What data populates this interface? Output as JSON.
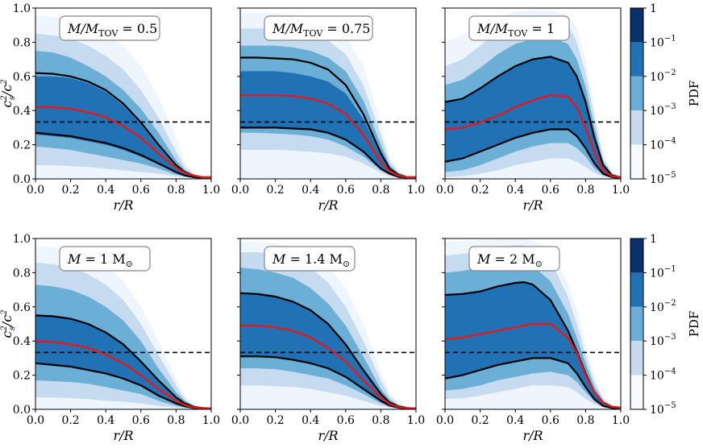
{
  "figure": {
    "colorbar": {
      "label": "PDF",
      "ticks": [
        {
          "base": "1",
          "exp": ""
        },
        {
          "base": "10",
          "exp": "−1"
        },
        {
          "base": "10",
          "exp": "−2"
        },
        {
          "base": "10",
          "exp": "−3"
        },
        {
          "base": "10",
          "exp": "−4"
        },
        {
          "base": "10",
          "exp": "−5"
        }
      ],
      "colors": [
        "#08306b",
        "#2171b5",
        "#6baed6",
        "#c6dbef",
        "#f7fbff"
      ]
    },
    "colors": {
      "dark_band": "#2171b5",
      "mid_band": "#6baed6",
      "light_band": "#c6dbef",
      "faint_band": "#eef5fc",
      "bound_line": "#000000",
      "median_line": "#e31a1c",
      "reference_line": "#000000"
    }
  },
  "chart_data": [
    {
      "type": "area",
      "panel": "top-left",
      "annotation": {
        "main": "M/M",
        "sub": "TOV",
        "value": " = 0.5"
      },
      "xlabel": "r/R",
      "ylabel": "c",
      "ylabel_parts": {
        "main": "c",
        "sup": "2",
        "sub": "s",
        "slash": "/c",
        "sup2": "2"
      },
      "xlim": [
        0,
        1
      ],
      "ylim": [
        0,
        1
      ],
      "xticks": [
        "0.0",
        "0.2",
        "0.4",
        "0.6",
        "0.8",
        "1.0"
      ],
      "yticks": [
        "0.0",
        "0.2",
        "0.4",
        "0.6",
        "0.8",
        "1.0"
      ],
      "reference_y": 0.333,
      "x": [
        0,
        0.1,
        0.2,
        0.3,
        0.4,
        0.5,
        0.6,
        0.7,
        0.8,
        0.85,
        0.9,
        0.95,
        1.0
      ],
      "upper": [
        0.62,
        0.615,
        0.6,
        0.57,
        0.52,
        0.44,
        0.33,
        0.2,
        0.08,
        0.04,
        0.02,
        0.01,
        0.01
      ],
      "median": [
        0.42,
        0.42,
        0.41,
        0.39,
        0.36,
        0.31,
        0.24,
        0.15,
        0.065,
        0.035,
        0.02,
        0.01,
        0.01
      ],
      "lower": [
        0.27,
        0.26,
        0.25,
        0.23,
        0.21,
        0.18,
        0.14,
        0.09,
        0.04,
        0.02,
        0.01,
        0.005,
        0.005
      ],
      "bands": {
        "dark_hi": [
          0.6,
          0.6,
          0.59,
          0.56,
          0.51,
          0.43,
          0.32,
          0.19,
          0.07,
          0.035,
          0.02,
          0.01,
          0.01
        ],
        "dark_lo": [
          0.26,
          0.25,
          0.24,
          0.22,
          0.2,
          0.17,
          0.13,
          0.085,
          0.035,
          0.02,
          0.01,
          0.005,
          0.005
        ],
        "mid_hi": [
          0.75,
          0.74,
          0.71,
          0.66,
          0.6,
          0.52,
          0.41,
          0.27,
          0.11,
          0.05,
          0.025,
          0.01,
          0.01
        ],
        "mid_lo": [
          0.19,
          0.18,
          0.17,
          0.15,
          0.13,
          0.11,
          0.09,
          0.06,
          0.025,
          0.015,
          0.008,
          0.004,
          0.004
        ],
        "light_hi": [
          0.85,
          0.84,
          0.82,
          0.78,
          0.72,
          0.64,
          0.52,
          0.36,
          0.16,
          0.07,
          0.03,
          0.012,
          0.01
        ],
        "light_lo": [
          0.08,
          0.08,
          0.075,
          0.07,
          0.06,
          0.05,
          0.04,
          0.03,
          0.015,
          0.008,
          0.005,
          0.003,
          0.003
        ],
        "faint_hi": [
          0.96,
          0.95,
          0.93,
          0.9,
          0.85,
          0.78,
          0.66,
          0.48,
          0.24,
          0.1,
          0.04,
          0.015,
          0.01
        ]
      }
    },
    {
      "type": "area",
      "panel": "top-middle",
      "annotation": {
        "main": "M/M",
        "sub": "TOV",
        "value": " = 0.75"
      },
      "xlabel": "r/R",
      "xlim": [
        0,
        1
      ],
      "ylim": [
        0,
        1
      ],
      "xticks": [
        "0.0",
        "0.2",
        "0.4",
        "0.6",
        "0.8",
        "1.0"
      ],
      "reference_y": 0.333,
      "x": [
        0,
        0.1,
        0.2,
        0.3,
        0.4,
        0.5,
        0.6,
        0.7,
        0.8,
        0.85,
        0.9,
        0.95,
        1.0
      ],
      "upper": [
        0.71,
        0.71,
        0.705,
        0.7,
        0.68,
        0.64,
        0.55,
        0.38,
        0.15,
        0.06,
        0.025,
        0.01,
        0.01
      ],
      "median": [
        0.49,
        0.49,
        0.49,
        0.485,
        0.47,
        0.44,
        0.38,
        0.26,
        0.1,
        0.045,
        0.02,
        0.01,
        0.01
      ],
      "lower": [
        0.3,
        0.3,
        0.3,
        0.295,
        0.29,
        0.27,
        0.23,
        0.16,
        0.06,
        0.03,
        0.012,
        0.006,
        0.005
      ],
      "bands": {
        "dark_hi": [
          0.63,
          0.63,
          0.63,
          0.62,
          0.6,
          0.57,
          0.5,
          0.35,
          0.14,
          0.055,
          0.023,
          0.01,
          0.01
        ],
        "dark_lo": [
          0.3,
          0.3,
          0.3,
          0.295,
          0.29,
          0.27,
          0.23,
          0.16,
          0.06,
          0.03,
          0.012,
          0.006,
          0.005
        ],
        "mid_hi": [
          0.78,
          0.78,
          0.78,
          0.77,
          0.75,
          0.71,
          0.63,
          0.46,
          0.2,
          0.08,
          0.03,
          0.012,
          0.01
        ],
        "mid_lo": [
          0.27,
          0.27,
          0.265,
          0.26,
          0.25,
          0.23,
          0.19,
          0.13,
          0.05,
          0.025,
          0.01,
          0.005,
          0.004
        ],
        "light_hi": [
          0.88,
          0.88,
          0.88,
          0.87,
          0.85,
          0.81,
          0.73,
          0.55,
          0.26,
          0.1,
          0.04,
          0.015,
          0.01
        ],
        "light_lo": [
          0.17,
          0.17,
          0.17,
          0.165,
          0.16,
          0.15,
          0.13,
          0.09,
          0.035,
          0.015,
          0.007,
          0.004,
          0.003
        ],
        "faint_hi": [
          0.97,
          0.97,
          0.97,
          0.96,
          0.95,
          0.92,
          0.84,
          0.66,
          0.33,
          0.13,
          0.05,
          0.02,
          0.01
        ]
      }
    },
    {
      "type": "area",
      "panel": "top-right",
      "annotation": {
        "main": "M/M",
        "sub": "TOV",
        "value": " = 1"
      },
      "xlabel": "r/R",
      "xlim": [
        0,
        1
      ],
      "ylim": [
        0,
        1
      ],
      "xticks": [
        "0.0",
        "0.2",
        "0.4",
        "0.6",
        "0.8",
        "1.0"
      ],
      "reference_y": 0.333,
      "x": [
        0,
        0.1,
        0.2,
        0.3,
        0.4,
        0.5,
        0.6,
        0.7,
        0.75,
        0.8,
        0.85,
        0.9,
        0.95,
        1.0
      ],
      "upper": [
        0.45,
        0.47,
        0.53,
        0.6,
        0.66,
        0.7,
        0.715,
        0.68,
        0.6,
        0.45,
        0.24,
        0.08,
        0.02,
        0.01
      ],
      "median": [
        0.29,
        0.3,
        0.33,
        0.37,
        0.42,
        0.46,
        0.49,
        0.48,
        0.42,
        0.3,
        0.16,
        0.05,
        0.015,
        0.01
      ],
      "lower": [
        0.1,
        0.12,
        0.16,
        0.2,
        0.24,
        0.27,
        0.29,
        0.29,
        0.25,
        0.18,
        0.09,
        0.03,
        0.01,
        0.005
      ],
      "bands": {
        "dark_hi": [
          0.45,
          0.47,
          0.53,
          0.6,
          0.66,
          0.7,
          0.72,
          0.68,
          0.6,
          0.45,
          0.24,
          0.08,
          0.02,
          0.01
        ],
        "dark_lo": [
          0.1,
          0.12,
          0.16,
          0.2,
          0.24,
          0.27,
          0.29,
          0.29,
          0.25,
          0.18,
          0.09,
          0.03,
          0.01,
          0.005
        ],
        "mid_hi": [
          0.55,
          0.58,
          0.65,
          0.73,
          0.79,
          0.82,
          0.83,
          0.79,
          0.7,
          0.54,
          0.3,
          0.1,
          0.03,
          0.01
        ],
        "mid_lo": [
          0.04,
          0.05,
          0.08,
          0.12,
          0.16,
          0.19,
          0.21,
          0.21,
          0.18,
          0.13,
          0.06,
          0.02,
          0.008,
          0.004
        ],
        "light_hi": [
          0.66,
          0.7,
          0.78,
          0.86,
          0.92,
          0.95,
          0.95,
          0.9,
          0.8,
          0.62,
          0.36,
          0.12,
          0.035,
          0.01
        ],
        "light_lo": [
          0.01,
          0.015,
          0.03,
          0.05,
          0.08,
          0.1,
          0.12,
          0.12,
          0.1,
          0.07,
          0.035,
          0.012,
          0.005,
          0.003
        ],
        "faint_hi": [
          0.8,
          0.84,
          0.9,
          0.95,
          0.98,
          0.99,
          0.99,
          0.96,
          0.88,
          0.7,
          0.42,
          0.15,
          0.04,
          0.01
        ]
      }
    },
    {
      "type": "area",
      "panel": "bottom-left",
      "annotation": {
        "main": "M",
        "sub": "",
        "value": " = 1 M",
        "sun": "⊙"
      },
      "xlabel": "r/R",
      "ylabel": "c",
      "ylabel_parts": {
        "main": "c",
        "sup": "2",
        "sub": "s",
        "slash": "/c",
        "sup2": "2"
      },
      "xlim": [
        0,
        1
      ],
      "ylim": [
        0,
        1
      ],
      "xticks": [
        "0.0",
        "0.2",
        "0.4",
        "0.6",
        "0.8",
        "1.0"
      ],
      "yticks": [
        "0.0",
        "0.2",
        "0.4",
        "0.6",
        "0.8",
        "1.0"
      ],
      "reference_y": 0.333,
      "x": [
        0,
        0.1,
        0.2,
        0.3,
        0.4,
        0.5,
        0.6,
        0.7,
        0.8,
        0.85,
        0.9,
        0.95,
        1.0
      ],
      "upper": [
        0.55,
        0.545,
        0.53,
        0.5,
        0.45,
        0.38,
        0.28,
        0.17,
        0.07,
        0.035,
        0.015,
        0.008,
        0.005
      ],
      "median": [
        0.4,
        0.395,
        0.38,
        0.36,
        0.32,
        0.27,
        0.2,
        0.12,
        0.05,
        0.025,
        0.012,
        0.006,
        0.005
      ],
      "lower": [
        0.27,
        0.26,
        0.25,
        0.23,
        0.21,
        0.18,
        0.14,
        0.08,
        0.035,
        0.018,
        0.008,
        0.004,
        0.003
      ],
      "bands": {
        "dark_hi": [
          0.55,
          0.545,
          0.53,
          0.5,
          0.45,
          0.38,
          0.28,
          0.17,
          0.07,
          0.035,
          0.015,
          0.008,
          0.005
        ],
        "dark_lo": [
          0.27,
          0.26,
          0.25,
          0.23,
          0.21,
          0.18,
          0.14,
          0.08,
          0.035,
          0.018,
          0.008,
          0.004,
          0.003
        ],
        "mid_hi": [
          0.73,
          0.72,
          0.7,
          0.66,
          0.6,
          0.52,
          0.4,
          0.24,
          0.1,
          0.05,
          0.02,
          0.01,
          0.005
        ],
        "mid_lo": [
          0.17,
          0.165,
          0.16,
          0.15,
          0.13,
          0.11,
          0.09,
          0.05,
          0.02,
          0.01,
          0.005,
          0.003,
          0.002
        ],
        "light_hi": [
          0.86,
          0.85,
          0.83,
          0.79,
          0.73,
          0.64,
          0.5,
          0.32,
          0.14,
          0.06,
          0.025,
          0.01,
          0.005
        ],
        "light_lo": [
          0.07,
          0.07,
          0.065,
          0.06,
          0.05,
          0.045,
          0.035,
          0.02,
          0.01,
          0.006,
          0.003,
          0.002,
          0.001
        ],
        "faint_hi": [
          0.96,
          0.95,
          0.93,
          0.9,
          0.84,
          0.75,
          0.6,
          0.4,
          0.18,
          0.08,
          0.03,
          0.012,
          0.005
        ]
      }
    },
    {
      "type": "area",
      "panel": "bottom-middle",
      "annotation": {
        "main": "M",
        "sub": "",
        "value": " = 1.4 M",
        "sun": "⊙"
      },
      "xlabel": "r/R",
      "xlim": [
        0,
        1
      ],
      "ylim": [
        0,
        1
      ],
      "xticks": [
        "0.0",
        "0.2",
        "0.4",
        "0.6",
        "0.8",
        "1.0"
      ],
      "reference_y": 0.333,
      "x": [
        0,
        0.1,
        0.2,
        0.3,
        0.4,
        0.5,
        0.6,
        0.7,
        0.8,
        0.85,
        0.9,
        0.95,
        1.0
      ],
      "upper": [
        0.68,
        0.675,
        0.66,
        0.63,
        0.58,
        0.5,
        0.38,
        0.23,
        0.09,
        0.04,
        0.018,
        0.008,
        0.005
      ],
      "median": [
        0.49,
        0.49,
        0.48,
        0.46,
        0.42,
        0.36,
        0.28,
        0.17,
        0.07,
        0.03,
        0.014,
        0.006,
        0.005
      ],
      "lower": [
        0.31,
        0.31,
        0.305,
        0.29,
        0.27,
        0.24,
        0.19,
        0.12,
        0.05,
        0.022,
        0.01,
        0.005,
        0.004
      ],
      "bands": {
        "dark_hi": [
          0.68,
          0.675,
          0.66,
          0.63,
          0.58,
          0.5,
          0.38,
          0.23,
          0.09,
          0.04,
          0.018,
          0.008,
          0.005
        ],
        "dark_lo": [
          0.31,
          0.31,
          0.305,
          0.29,
          0.27,
          0.24,
          0.19,
          0.12,
          0.05,
          0.022,
          0.01,
          0.005,
          0.004
        ],
        "mid_hi": [
          0.83,
          0.82,
          0.8,
          0.77,
          0.71,
          0.62,
          0.49,
          0.31,
          0.12,
          0.055,
          0.022,
          0.01,
          0.005
        ],
        "mid_lo": [
          0.24,
          0.24,
          0.235,
          0.22,
          0.2,
          0.18,
          0.14,
          0.09,
          0.035,
          0.016,
          0.007,
          0.004,
          0.003
        ],
        "light_hi": [
          0.92,
          0.92,
          0.91,
          0.88,
          0.83,
          0.74,
          0.6,
          0.4,
          0.17,
          0.075,
          0.03,
          0.012,
          0.005
        ],
        "light_lo": [
          0.14,
          0.14,
          0.135,
          0.13,
          0.12,
          0.1,
          0.08,
          0.05,
          0.02,
          0.01,
          0.005,
          0.003,
          0.002
        ],
        "faint_hi": [
          0.98,
          0.98,
          0.97,
          0.95,
          0.91,
          0.84,
          0.71,
          0.5,
          0.22,
          0.1,
          0.04,
          0.015,
          0.005
        ]
      }
    },
    {
      "type": "area",
      "panel": "bottom-right",
      "annotation": {
        "main": "M",
        "sub": "",
        "value": " = 2 M",
        "sun": "⊙"
      },
      "xlabel": "r/R",
      "xlim": [
        0,
        1
      ],
      "ylim": [
        0,
        1
      ],
      "xticks": [
        "0.0",
        "0.2",
        "0.4",
        "0.6",
        "0.8",
        "1.0"
      ],
      "reference_y": 0.333,
      "x": [
        0,
        0.1,
        0.2,
        0.3,
        0.4,
        0.45,
        0.5,
        0.6,
        0.7,
        0.75,
        0.8,
        0.85,
        0.9,
        0.95,
        1.0
      ],
      "upper": [
        0.67,
        0.675,
        0.69,
        0.72,
        0.74,
        0.745,
        0.73,
        0.64,
        0.46,
        0.34,
        0.21,
        0.1,
        0.04,
        0.015,
        0.01
      ],
      "median": [
        0.41,
        0.42,
        0.44,
        0.46,
        0.48,
        0.49,
        0.5,
        0.5,
        0.42,
        0.33,
        0.2,
        0.1,
        0.04,
        0.015,
        0.01
      ],
      "lower": [
        0.18,
        0.2,
        0.23,
        0.26,
        0.28,
        0.29,
        0.3,
        0.3,
        0.27,
        0.21,
        0.13,
        0.06,
        0.02,
        0.008,
        0.005
      ],
      "bands": {
        "dark_hi": [
          0.67,
          0.675,
          0.69,
          0.72,
          0.74,
          0.745,
          0.73,
          0.64,
          0.46,
          0.34,
          0.21,
          0.1,
          0.04,
          0.015,
          0.01
        ],
        "dark_lo": [
          0.18,
          0.2,
          0.23,
          0.26,
          0.28,
          0.29,
          0.3,
          0.3,
          0.27,
          0.21,
          0.13,
          0.06,
          0.02,
          0.008,
          0.005
        ],
        "mid_hi": [
          0.8,
          0.81,
          0.83,
          0.85,
          0.86,
          0.86,
          0.84,
          0.75,
          0.56,
          0.42,
          0.27,
          0.13,
          0.05,
          0.018,
          0.01
        ],
        "mid_lo": [
          0.11,
          0.12,
          0.14,
          0.17,
          0.19,
          0.2,
          0.21,
          0.22,
          0.2,
          0.16,
          0.1,
          0.045,
          0.015,
          0.006,
          0.004
        ],
        "light_hi": [
          0.9,
          0.91,
          0.93,
          0.95,
          0.96,
          0.96,
          0.95,
          0.87,
          0.66,
          0.5,
          0.32,
          0.16,
          0.06,
          0.02,
          0.01
        ],
        "light_lo": [
          0.06,
          0.065,
          0.08,
          0.1,
          0.12,
          0.13,
          0.14,
          0.14,
          0.13,
          0.1,
          0.06,
          0.03,
          0.01,
          0.004,
          0.003
        ],
        "faint_hi": [
          0.98,
          0.985,
          0.99,
          0.995,
          0.995,
          0.995,
          0.99,
          0.94,
          0.74,
          0.58,
          0.38,
          0.19,
          0.07,
          0.025,
          0.01
        ]
      }
    }
  ]
}
